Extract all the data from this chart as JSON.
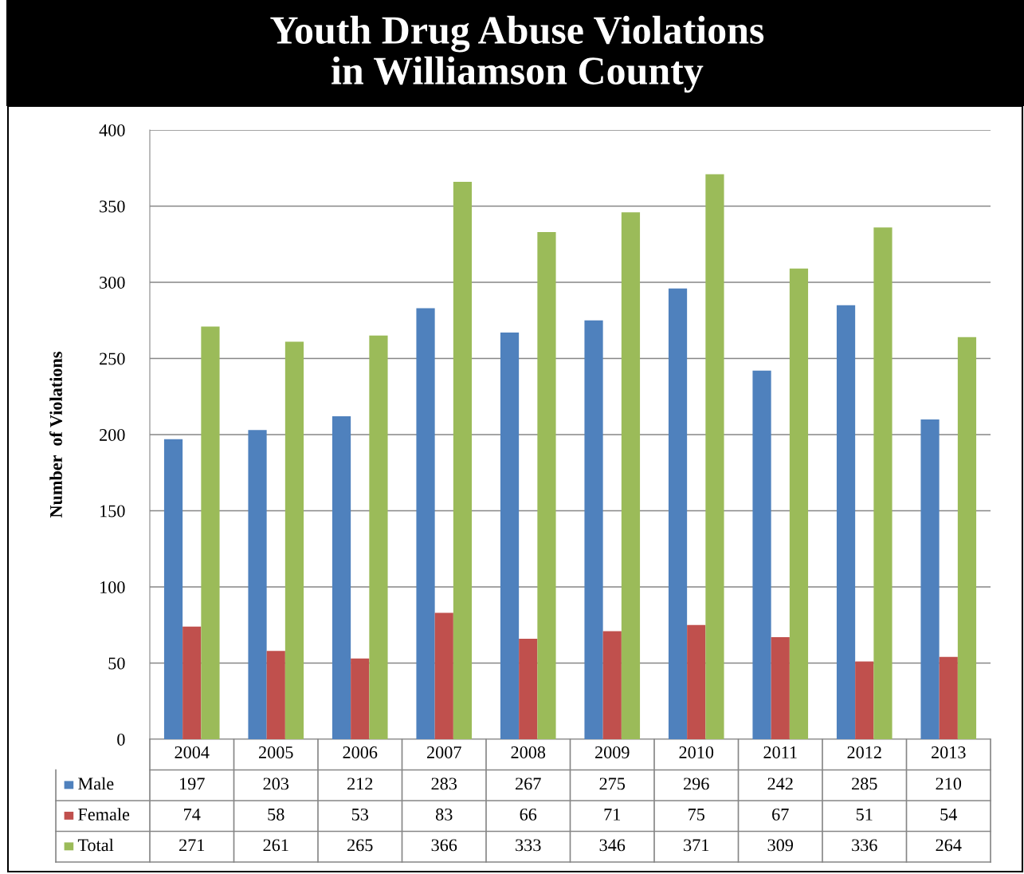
{
  "chart_data": {
    "type": "bar",
    "title": "Youth Drug Abuse Violations\nin Williamson County",
    "ylabel": "Number  of Violations",
    "categories": [
      "2004",
      "2005",
      "2006",
      "2007",
      "2008",
      "2009",
      "2010",
      "2011",
      "2012",
      "2013"
    ],
    "series": [
      {
        "name": "Male",
        "color": "#4f81bd",
        "values": [
          197,
          203,
          212,
          283,
          267,
          275,
          296,
          242,
          285,
          210
        ]
      },
      {
        "name": "Female",
        "color": "#c0504d",
        "values": [
          74,
          58,
          53,
          83,
          66,
          71,
          75,
          67,
          51,
          54
        ]
      },
      {
        "name": "Total",
        "color": "#9bbb59",
        "values": [
          271,
          261,
          265,
          366,
          333,
          346,
          371,
          309,
          336,
          264
        ]
      }
    ],
    "ylim": [
      0,
      400
    ],
    "yticks": [
      0,
      50,
      100,
      150,
      200,
      250,
      300,
      350,
      400
    ],
    "grid": "y",
    "data_labels": true,
    "legend": "bottom"
  }
}
